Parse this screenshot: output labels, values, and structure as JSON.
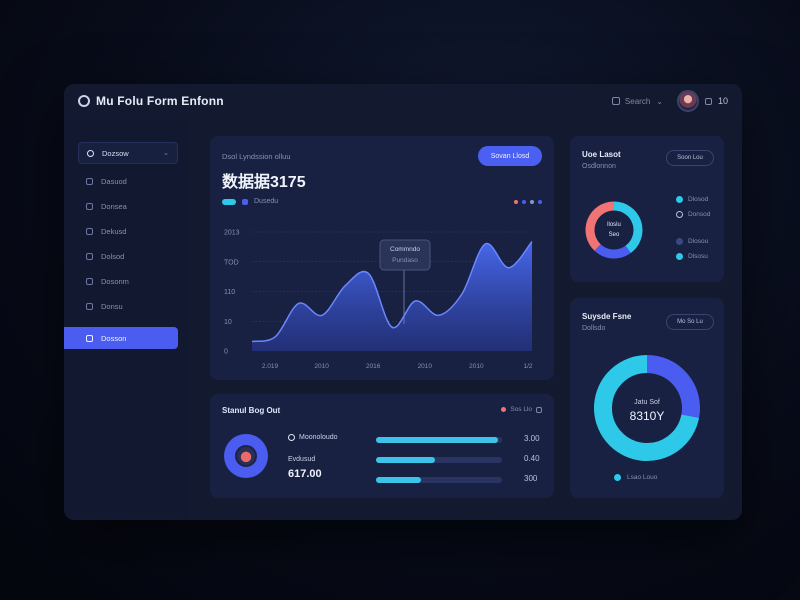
{
  "header": {
    "brand_title": "Mu Folu Form Enfonn",
    "search_label": "Search",
    "counter": "10"
  },
  "sidebar": {
    "items": [
      {
        "label": "Dozsow"
      },
      {
        "label": "Dasuod"
      },
      {
        "label": "Donsea"
      },
      {
        "label": "Dekusd"
      },
      {
        "label": "Dolsod"
      },
      {
        "label": "Dosonm"
      },
      {
        "label": "Donsu"
      },
      {
        "label": "Dosson"
      }
    ]
  },
  "main_chart": {
    "subtitle": "Dsol Lyndssion olluu",
    "big_value": "数据据3175",
    "button_label": "Sovan Llosd",
    "legend": [
      {
        "label": "Dusedu"
      }
    ],
    "tooltip": {
      "title": "Commndo",
      "sub": "Pundaso"
    }
  },
  "bottom_card": {
    "title": "Stanul Bog Out",
    "tag": "Sos Llo",
    "stats": [
      {
        "label": "Moonoloudo"
      },
      {
        "label": "Evdusud",
        "value": "617.00"
      }
    ],
    "bars": [
      {
        "progress": 0.97,
        "value": "3.00"
      },
      {
        "progress": 0.47,
        "value": "0.40"
      },
      {
        "progress": 0.36,
        "value": "300"
      }
    ]
  },
  "right_top": {
    "title": "Uoe Lasot",
    "subtitle": "Osdlonnon",
    "button_label": "Soon Lou",
    "donut_center_line1": "lloslu",
    "donut_center_line2": "Seo",
    "legend": [
      {
        "label": "Dlosod",
        "color": "#2ec9e8"
      },
      {
        "label": "Donsod",
        "color": "#4a5df0"
      },
      {
        "label": "Dlosou",
        "color": "#3a4a80"
      },
      {
        "label": "Dlsosu",
        "color": "#2ec9e8"
      }
    ]
  },
  "right_bottom": {
    "title": "Suysde Fsne",
    "subtitle": "Dollsdo",
    "button_label": "Mo So Lu",
    "donut_center_line1": "Jatu Sof",
    "donut_center_line2": "8310Y",
    "legend_label": "Lsao Louo"
  },
  "chart_data": [
    {
      "type": "area",
      "title": "",
      "xlabel": "",
      "ylabel": "",
      "y_tick_labels": [
        "2013",
        "TOD",
        "110",
        "10",
        "0"
      ],
      "x_tick_labels": [
        "2.019",
        "2010",
        "2016",
        "2010",
        "2010",
        "1/2"
      ],
      "series": [
        {
          "values": [
            8,
            12,
            40,
            30,
            55,
            65,
            20,
            42,
            30,
            48,
            90,
            70,
            92
          ]
        }
      ],
      "ylim": [
        0,
        100
      ],
      "grid": true
    },
    {
      "type": "pie",
      "title": "",
      "slices": [
        {
          "value": 40,
          "color": "#2ec9e8"
        },
        {
          "value": 22,
          "color": "#4a5df0"
        },
        {
          "value": 38,
          "color": "#f07474"
        }
      ]
    },
    {
      "type": "pie",
      "title": "",
      "slices": [
        {
          "value": 28,
          "color": "#4a5df0"
        },
        {
          "value": 72,
          "color": "#2ec9e8"
        }
      ]
    }
  ]
}
